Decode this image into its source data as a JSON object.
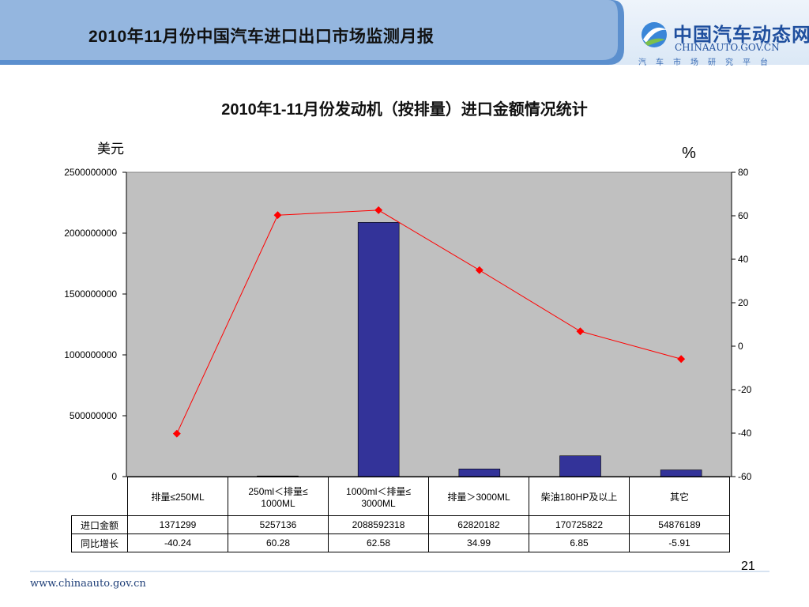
{
  "header": {
    "report_title": "2010年11月份中国汽车进口出口市场监测月报",
    "logo": {
      "name": "中国汽车动态网",
      "domain": "CHINAAUTO.GOV.CN",
      "tagline": "汽车市场研究平台"
    }
  },
  "footer": {
    "url": "www.chinaauto.gov.cn",
    "page_number": "21"
  },
  "colors": {
    "bar": "#333399",
    "line": "#ff0000",
    "plot_bg": "#c0c0c0",
    "header_band": "#dbe8f6"
  },
  "chart_data": {
    "type": "bar",
    "title": "2010年1-11月份发动机（按排量）进口金额情况统计",
    "y_left_label": "美元",
    "y_right_label": "%",
    "categories": [
      [
        "排量≤250ML"
      ],
      [
        "250ml＜排量≤",
        "1000ML"
      ],
      [
        "1000ml＜排量≤",
        "3000ML"
      ],
      [
        "排量＞3000ML"
      ],
      [
        "柴油180HP及以上"
      ],
      [
        "其它"
      ]
    ],
    "ylim_left": [
      0,
      2500000000
    ],
    "yticks_left": [
      "0",
      "500000000",
      "1000000000",
      "1500000000",
      "2000000000",
      "2500000000"
    ],
    "ylim_right": [
      -60,
      80
    ],
    "yticks_right": [
      "-60",
      "-40",
      "-20",
      "0",
      "20",
      "40",
      "60",
      "80"
    ],
    "series": [
      {
        "name": "进口金额",
        "type": "bar",
        "axis": "left",
        "values": [
          1371299,
          5257136,
          2088592318,
          62820182,
          170725822,
          54876189
        ],
        "labels": [
          "1371299",
          "5257136",
          "2088592318",
          "62820182",
          "170725822",
          "54876189"
        ]
      },
      {
        "name": "同比增长",
        "type": "line",
        "axis": "right",
        "values": [
          -40.24,
          60.28,
          62.58,
          34.99,
          6.85,
          -5.91
        ],
        "labels": [
          "-40.24",
          "60.28",
          "62.58",
          "34.99",
          "6.85",
          "-5.91"
        ]
      }
    ],
    "grid": false,
    "legend": "data-table"
  }
}
